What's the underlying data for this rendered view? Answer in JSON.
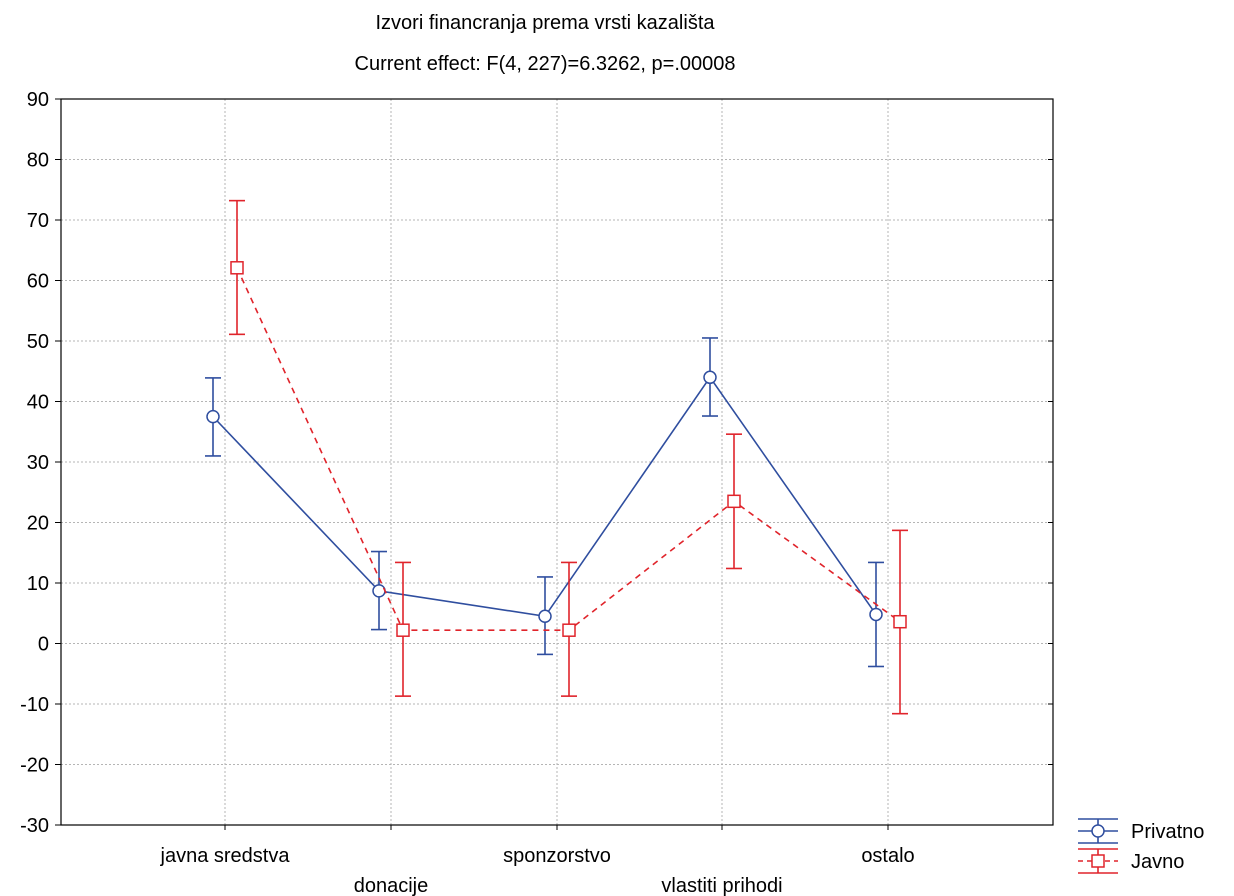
{
  "chart_data": {
    "type": "line",
    "title": "Izvori financranja prema vrsti kazališta",
    "subtitle": "Current effect: F(4, 227)=6.3262, p=.00008",
    "xlabel": "",
    "ylabel": "",
    "categories": [
      "javna sredstva",
      "donacije",
      "sponzorstvo",
      "vlastiti prihodi",
      "ostalo"
    ],
    "ylim": [
      -30,
      90
    ],
    "yticks": [
      90,
      80,
      70,
      60,
      50,
      40,
      30,
      20,
      10,
      0,
      -10,
      -20,
      -30
    ],
    "grid": true,
    "legend_position": "bottom-right",
    "series": [
      {
        "name": "Privatno",
        "color": "#2f4e9f",
        "line_style": "solid",
        "marker": "circle",
        "values": [
          37.5,
          8.7,
          4.5,
          44.0,
          4.8
        ],
        "lower": [
          31.0,
          2.3,
          -1.8,
          37.6,
          -3.8
        ],
        "upper": [
          43.9,
          15.2,
          11.0,
          50.5,
          13.4
        ]
      },
      {
        "name": "Javno",
        "color": "#e0242b",
        "line_style": "dashed",
        "marker": "square",
        "values": [
          62.1,
          2.2,
          2.2,
          23.5,
          3.6
        ],
        "lower": [
          51.1,
          -8.7,
          -8.7,
          12.4,
          -11.6
        ],
        "upper": [
          73.2,
          13.4,
          13.4,
          34.6,
          18.7
        ]
      }
    ]
  }
}
